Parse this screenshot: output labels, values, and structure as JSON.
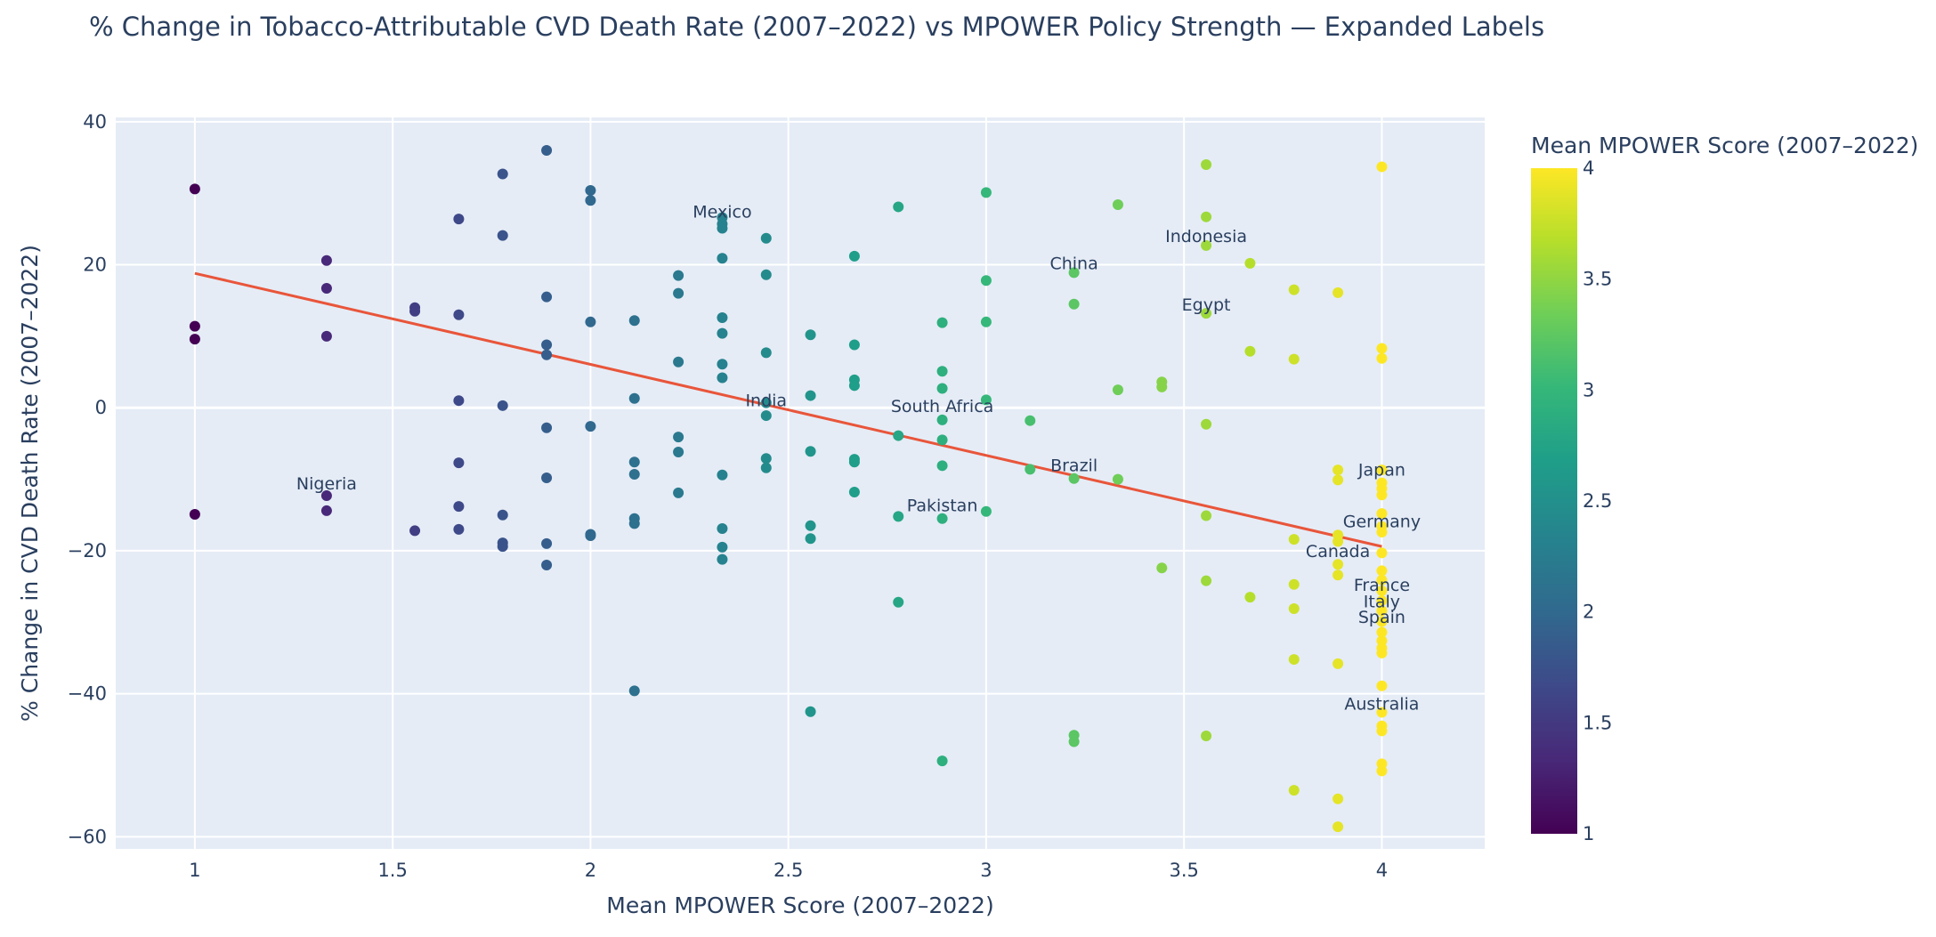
{
  "chart_data": {
    "type": "scatter",
    "title": "% Change in Tobacco-Attributable CVD Death Rate (2007–2022) vs MPOWER Policy Strength — Expanded Labels",
    "xlabel": "Mean MPOWER Score (2007–2022)",
    "ylabel": "% Change in CVD Death Rate (2007–2022)",
    "xlim": [
      0.8,
      4.26
    ],
    "ylim": [
      -61.7,
      40.6
    ],
    "xticks": [
      1,
      1.5,
      2,
      2.5,
      3,
      3.5,
      4
    ],
    "xtick_labels": [
      "1",
      "1.5",
      "2",
      "2.5",
      "3",
      "3.5",
      "4"
    ],
    "yticks": [
      40,
      20,
      0,
      -20,
      -40,
      -60
    ],
    "ytick_labels": [
      "40",
      "20",
      "0",
      "−20",
      "−40",
      "−60"
    ],
    "colorbar": {
      "title": "Mean MPOWER Score (2007–2022)",
      "range": [
        1,
        4
      ],
      "ticks": [
        4,
        3.5,
        3,
        2.5,
        2,
        1.5,
        1
      ],
      "tick_labels": [
        "4",
        "3.5",
        "3",
        "2.5",
        "2",
        "1.5",
        "1"
      ],
      "colorscale": "Viridis"
    },
    "trendline": {
      "x": [
        1,
        4
      ],
      "y": [
        18.8,
        -19.4
      ],
      "color": "#e9553a"
    },
    "points": [
      {
        "x": 1.0,
        "y": 30.6
      },
      {
        "x": 1.0,
        "y": 11.4
      },
      {
        "x": 1.0,
        "y": 9.6
      },
      {
        "x": 1.0,
        "y": -14.9
      },
      {
        "x": 1.333,
        "y": 20.6
      },
      {
        "x": 1.333,
        "y": 16.7
      },
      {
        "x": 1.333,
        "y": 10.0
      },
      {
        "x": 1.333,
        "y": -12.3
      },
      {
        "x": 1.333,
        "y": -14.4
      },
      {
        "x": 1.556,
        "y": 14.0
      },
      {
        "x": 1.556,
        "y": 13.5
      },
      {
        "x": 1.556,
        "y": -17.2
      },
      {
        "x": 1.667,
        "y": 26.4
      },
      {
        "x": 1.667,
        "y": 13.0
      },
      {
        "x": 1.667,
        "y": 1.0
      },
      {
        "x": 1.667,
        "y": -7.7
      },
      {
        "x": 1.667,
        "y": -13.8
      },
      {
        "x": 1.667,
        "y": -17.0
      },
      {
        "x": 1.778,
        "y": 32.7
      },
      {
        "x": 1.778,
        "y": 24.1
      },
      {
        "x": 1.778,
        "y": 0.3
      },
      {
        "x": 1.778,
        "y": -15.0
      },
      {
        "x": 1.778,
        "y": -18.9
      },
      {
        "x": 1.778,
        "y": -19.4
      },
      {
        "x": 1.889,
        "y": 36.0
      },
      {
        "x": 1.889,
        "y": 15.5
      },
      {
        "x": 1.889,
        "y": 8.8
      },
      {
        "x": 1.889,
        "y": 7.4
      },
      {
        "x": 1.889,
        "y": -2.8
      },
      {
        "x": 1.889,
        "y": -9.8
      },
      {
        "x": 1.889,
        "y": -19.0
      },
      {
        "x": 1.889,
        "y": -22.0
      },
      {
        "x": 2.0,
        "y": 30.4
      },
      {
        "x": 2.0,
        "y": 29.0
      },
      {
        "x": 2.0,
        "y": 12.0
      },
      {
        "x": 2.0,
        "y": -2.6
      },
      {
        "x": 2.0,
        "y": -17.7
      },
      {
        "x": 2.0,
        "y": -17.9
      },
      {
        "x": 2.111,
        "y": 12.2
      },
      {
        "x": 2.111,
        "y": 1.3
      },
      {
        "x": 2.111,
        "y": -7.6
      },
      {
        "x": 2.111,
        "y": -9.3
      },
      {
        "x": 2.111,
        "y": -15.5
      },
      {
        "x": 2.111,
        "y": -16.2
      },
      {
        "x": 2.111,
        "y": -39.6
      },
      {
        "x": 2.222,
        "y": 18.5
      },
      {
        "x": 2.222,
        "y": 16.0
      },
      {
        "x": 2.222,
        "y": 6.4
      },
      {
        "x": 2.222,
        "y": -4.1
      },
      {
        "x": 2.222,
        "y": -6.2
      },
      {
        "x": 2.222,
        "y": -11.9
      },
      {
        "x": 2.333,
        "y": 26.6
      },
      {
        "x": 2.333,
        "y": 25.7
      },
      {
        "x": 2.333,
        "y": 25.1
      },
      {
        "x": 2.333,
        "y": 20.9
      },
      {
        "x": 2.333,
        "y": 12.6
      },
      {
        "x": 2.333,
        "y": 10.4
      },
      {
        "x": 2.333,
        "y": 6.1
      },
      {
        "x": 2.333,
        "y": 4.2
      },
      {
        "x": 2.333,
        "y": -9.4
      },
      {
        "x": 2.333,
        "y": -16.9
      },
      {
        "x": 2.333,
        "y": -19.5
      },
      {
        "x": 2.333,
        "y": -21.2
      },
      {
        "x": 2.444,
        "y": 23.7
      },
      {
        "x": 2.444,
        "y": 18.6
      },
      {
        "x": 2.444,
        "y": 7.7
      },
      {
        "x": 2.444,
        "y": 0.7
      },
      {
        "x": 2.444,
        "y": -1.1
      },
      {
        "x": 2.444,
        "y": -7.1
      },
      {
        "x": 2.444,
        "y": -8.4
      },
      {
        "x": 2.556,
        "y": 10.2
      },
      {
        "x": 2.556,
        "y": 1.7
      },
      {
        "x": 2.556,
        "y": -6.1
      },
      {
        "x": 2.556,
        "y": -16.5
      },
      {
        "x": 2.556,
        "y": -18.3
      },
      {
        "x": 2.556,
        "y": -42.5
      },
      {
        "x": 2.667,
        "y": 21.2
      },
      {
        "x": 2.667,
        "y": 8.8
      },
      {
        "x": 2.667,
        "y": 3.9
      },
      {
        "x": 2.667,
        "y": 3.1
      },
      {
        "x": 2.667,
        "y": -7.2
      },
      {
        "x": 2.667,
        "y": -7.6
      },
      {
        "x": 2.667,
        "y": -11.8
      },
      {
        "x": 2.778,
        "y": 28.1
      },
      {
        "x": 2.778,
        "y": -3.9
      },
      {
        "x": 2.778,
        "y": -15.2
      },
      {
        "x": 2.778,
        "y": -27.2
      },
      {
        "x": 2.889,
        "y": 11.9
      },
      {
        "x": 2.889,
        "y": 5.1
      },
      {
        "x": 2.889,
        "y": 2.7
      },
      {
        "x": 2.889,
        "y": -1.7
      },
      {
        "x": 2.889,
        "y": -4.5
      },
      {
        "x": 2.889,
        "y": -8.1
      },
      {
        "x": 2.889,
        "y": -15.5
      },
      {
        "x": 2.889,
        "y": -49.4
      },
      {
        "x": 3.0,
        "y": 30.1
      },
      {
        "x": 3.0,
        "y": 17.8
      },
      {
        "x": 3.0,
        "y": 12.0
      },
      {
        "x": 3.0,
        "y": 1.1
      },
      {
        "x": 3.0,
        "y": -14.5
      },
      {
        "x": 3.111,
        "y": -1.8
      },
      {
        "x": 3.111,
        "y": -8.6
      },
      {
        "x": 3.222,
        "y": 18.9
      },
      {
        "x": 3.222,
        "y": 14.5
      },
      {
        "x": 3.222,
        "y": -9.9
      },
      {
        "x": 3.222,
        "y": -45.8
      },
      {
        "x": 3.222,
        "y": -46.7
      },
      {
        "x": 3.333,
        "y": 28.4
      },
      {
        "x": 3.333,
        "y": 2.5
      },
      {
        "x": 3.333,
        "y": -10.0
      },
      {
        "x": 3.444,
        "y": 3.6
      },
      {
        "x": 3.444,
        "y": 2.9
      },
      {
        "x": 3.444,
        "y": -22.4
      },
      {
        "x": 3.556,
        "y": 34.0
      },
      {
        "x": 3.556,
        "y": 26.7
      },
      {
        "x": 3.556,
        "y": 22.7
      },
      {
        "x": 3.556,
        "y": 13.2
      },
      {
        "x": 3.556,
        "y": -2.3
      },
      {
        "x": 3.556,
        "y": -15.1
      },
      {
        "x": 3.556,
        "y": -24.2
      },
      {
        "x": 3.556,
        "y": -45.9
      },
      {
        "x": 3.667,
        "y": 20.2
      },
      {
        "x": 3.667,
        "y": 7.9
      },
      {
        "x": 3.667,
        "y": -26.5
      },
      {
        "x": 3.778,
        "y": 16.5
      },
      {
        "x": 3.778,
        "y": 6.8
      },
      {
        "x": 3.778,
        "y": -18.4
      },
      {
        "x": 3.778,
        "y": -24.7
      },
      {
        "x": 3.778,
        "y": -28.1
      },
      {
        "x": 3.778,
        "y": -35.2
      },
      {
        "x": 3.778,
        "y": -53.5
      },
      {
        "x": 3.889,
        "y": 16.1
      },
      {
        "x": 3.889,
        "y": -8.7
      },
      {
        "x": 3.889,
        "y": -10.1
      },
      {
        "x": 3.889,
        "y": -17.8
      },
      {
        "x": 3.889,
        "y": -18.7
      },
      {
        "x": 3.889,
        "y": -21.9
      },
      {
        "x": 3.889,
        "y": -23.4
      },
      {
        "x": 3.889,
        "y": -35.8
      },
      {
        "x": 3.889,
        "y": -54.7
      },
      {
        "x": 3.889,
        "y": -58.6
      },
      {
        "x": 4.0,
        "y": 33.7
      },
      {
        "x": 4.0,
        "y": 8.3
      },
      {
        "x": 4.0,
        "y": 6.9
      },
      {
        "x": 4.0,
        "y": -8.7
      },
      {
        "x": 4.0,
        "y": -10.5
      },
      {
        "x": 4.0,
        "y": -11.3
      },
      {
        "x": 4.0,
        "y": -12.2
      },
      {
        "x": 4.0,
        "y": -14.8
      },
      {
        "x": 4.0,
        "y": -16.6
      },
      {
        "x": 4.0,
        "y": -17.4
      },
      {
        "x": 4.0,
        "y": -20.3
      },
      {
        "x": 4.0,
        "y": -22.8
      },
      {
        "x": 4.0,
        "y": -24.1
      },
      {
        "x": 4.0,
        "y": -25.6
      },
      {
        "x": 4.0,
        "y": -27.0
      },
      {
        "x": 4.0,
        "y": -28.4
      },
      {
        "x": 4.0,
        "y": -29.9
      },
      {
        "x": 4.0,
        "y": -31.4
      },
      {
        "x": 4.0,
        "y": -32.6
      },
      {
        "x": 4.0,
        "y": -33.6
      },
      {
        "x": 4.0,
        "y": -34.3
      },
      {
        "x": 4.0,
        "y": -38.9
      },
      {
        "x": 4.0,
        "y": -42.6
      },
      {
        "x": 4.0,
        "y": -44.5
      },
      {
        "x": 4.0,
        "y": -45.2
      },
      {
        "x": 4.0,
        "y": -49.8
      },
      {
        "x": 4.0,
        "y": -50.8
      }
    ],
    "labels": [
      {
        "text": "Mexico",
        "x": 2.333,
        "y": 26.6
      },
      {
        "text": "Indonesia",
        "x": 3.556,
        "y": 23.2
      },
      {
        "text": "China",
        "x": 3.222,
        "y": 19.4
      },
      {
        "text": "Egypt",
        "x": 3.556,
        "y": 13.6
      },
      {
        "text": "India",
        "x": 2.444,
        "y": 0.2
      },
      {
        "text": "South Africa",
        "x": 2.889,
        "y": -0.6
      },
      {
        "text": "Brazil",
        "x": 3.222,
        "y": -8.9
      },
      {
        "text": "Japan",
        "x": 4.0,
        "y": -9.5
      },
      {
        "text": "Nigeria",
        "x": 1.333,
        "y": -11.4
      },
      {
        "text": "Pakistan",
        "x": 2.889,
        "y": -14.5
      },
      {
        "text": "Germany",
        "x": 4.0,
        "y": -16.7
      },
      {
        "text": "Canada",
        "x": 3.889,
        "y": -20.9
      },
      {
        "text": "France",
        "x": 4.0,
        "y": -25.6
      },
      {
        "text": "Italy",
        "x": 4.0,
        "y": -27.9
      },
      {
        "text": "Spain",
        "x": 4.0,
        "y": -30.1
      },
      {
        "text": "Australia",
        "x": 4.0,
        "y": -42.2
      }
    ]
  }
}
